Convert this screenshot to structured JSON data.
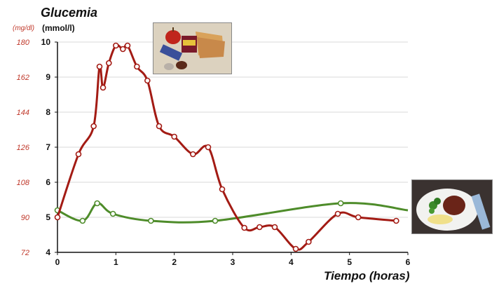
{
  "chart_data": {
    "type": "line",
    "title": "Glucemia",
    "ylabel": "(mmol/l)",
    "ylabel_secondary": "(mg/dl)",
    "xlabel": "Tiempo (horas)",
    "xlim": [
      0,
      6
    ],
    "ylim": [
      4,
      10
    ],
    "x_ticks": [
      "0",
      "1",
      "2",
      "3",
      "4",
      "5",
      "6"
    ],
    "y_ticks": [
      "4",
      "5",
      "6",
      "7",
      "8",
      "9",
      "10"
    ],
    "y_ticks_secondary": [
      "72",
      "90",
      "108",
      "126",
      "144",
      "162",
      "180"
    ],
    "grid": "horizontal",
    "series": [
      {
        "color": "#a31b14",
        "x": [
          0,
          0.36,
          0.62,
          0.72,
          0.78,
          0.88,
          1.0,
          1.12,
          1.2,
          1.36,
          1.54,
          1.74,
          2.0,
          2.32,
          2.58,
          2.82,
          3.2,
          3.46,
          3.72,
          4.08,
          4.3,
          4.8,
          5.15,
          5.8
        ],
        "y": [
          5.0,
          6.8,
          7.6,
          9.3,
          8.7,
          9.4,
          9.9,
          9.8,
          9.9,
          9.3,
          8.9,
          7.6,
          7.3,
          6.8,
          7.0,
          5.8,
          4.7,
          4.72,
          4.72,
          4.1,
          4.3,
          5.1,
          5.0,
          4.9
        ]
      },
      {
        "color": "#4e8c2a",
        "x": [
          0,
          0.43,
          0.68,
          0.95,
          1.6,
          2.7,
          4.85,
          6.0
        ],
        "y": [
          5.2,
          4.9,
          5.4,
          5.1,
          4.9,
          4.9,
          5.4,
          5.2
        ]
      }
    ]
  }
}
